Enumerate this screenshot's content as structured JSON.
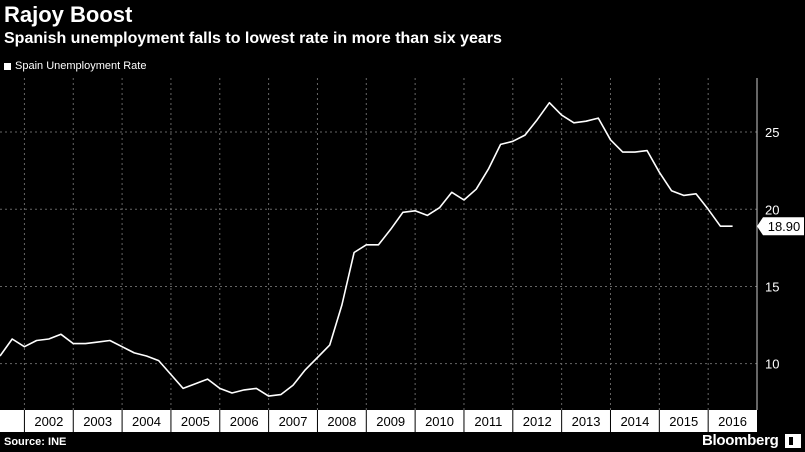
{
  "header": {
    "title": "Rajoy Boost",
    "subtitle": "Spanish unemployment falls to lowest rate in more than six years"
  },
  "legend": {
    "label": "Spain Unemployment Rate"
  },
  "footer": {
    "source": "Source: INE",
    "brand": "Bloomberg"
  },
  "colors": {
    "background": "#000000",
    "line": "#ffffff",
    "grid": "#666666"
  },
  "chart_data": {
    "type": "line",
    "title": "Rajoy Boost",
    "subtitle": "Spanish unemployment falls to lowest rate in more than six years",
    "xlabel": "",
    "ylabel": "",
    "ylim": [
      7,
      28.5
    ],
    "xlim": [
      2001.5,
      2017
    ],
    "yticks": [
      10,
      15,
      20,
      25
    ],
    "ytick_labels": [
      "10",
      "15",
      "20",
      "25"
    ],
    "xticks": [
      2002,
      2003,
      2004,
      2005,
      2006,
      2007,
      2008,
      2009,
      2010,
      2011,
      2012,
      2013,
      2014,
      2015,
      2016
    ],
    "xtick_labels": [
      "2002",
      "2003",
      "2004",
      "2005",
      "2006",
      "2007",
      "2008",
      "2009",
      "2010",
      "2011",
      "2012",
      "2013",
      "2014",
      "2015",
      "2016"
    ],
    "grid": true,
    "legend_position": "top-left",
    "last_value_label": "18.90",
    "series": [
      {
        "name": "Spain Unemployment Rate",
        "x": [
          2001.5,
          2001.75,
          2002.0,
          2002.25,
          2002.5,
          2002.75,
          2003.0,
          2003.25,
          2003.5,
          2003.75,
          2004.0,
          2004.25,
          2004.5,
          2004.75,
          2005.0,
          2005.25,
          2005.5,
          2005.75,
          2006.0,
          2006.25,
          2006.5,
          2006.75,
          2007.0,
          2007.25,
          2007.5,
          2007.75,
          2008.0,
          2008.25,
          2008.5,
          2008.75,
          2009.0,
          2009.25,
          2009.5,
          2009.75,
          2010.0,
          2010.25,
          2010.5,
          2010.75,
          2011.0,
          2011.25,
          2011.5,
          2011.75,
          2012.0,
          2012.25,
          2012.5,
          2012.75,
          2013.0,
          2013.25,
          2013.5,
          2013.75,
          2014.0,
          2014.25,
          2014.5,
          2014.75,
          2015.0,
          2015.25,
          2015.5,
          2015.75,
          2016.0,
          2016.25,
          2016.5
        ],
        "values": [
          10.5,
          11.6,
          11.1,
          11.5,
          11.6,
          11.9,
          11.3,
          11.3,
          11.4,
          11.5,
          11.1,
          10.7,
          10.5,
          10.2,
          9.3,
          8.4,
          8.7,
          9.0,
          8.4,
          8.1,
          8.3,
          8.4,
          7.9,
          8.0,
          8.6,
          9.6,
          10.4,
          11.2,
          13.8,
          17.2,
          17.7,
          17.7,
          18.7,
          19.8,
          19.9,
          19.6,
          20.1,
          21.1,
          20.6,
          21.3,
          22.6,
          24.2,
          24.4,
          24.8,
          25.8,
          26.9,
          26.1,
          25.6,
          25.7,
          25.9,
          24.5,
          23.7,
          23.7,
          23.8,
          22.4,
          21.2,
          20.9,
          21.0,
          20.0,
          18.9,
          18.9
        ]
      }
    ]
  }
}
